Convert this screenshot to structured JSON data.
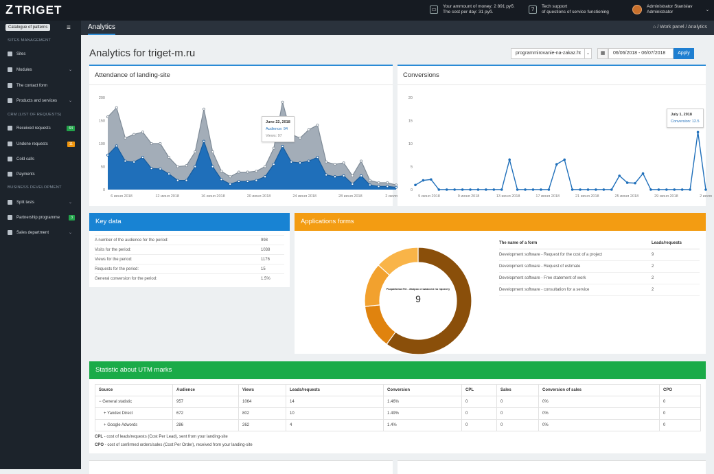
{
  "brand": {
    "name": "TRIGET",
    "mark": "Z"
  },
  "topbar": {
    "money_title": "Your ammount of money: 2 891 руб.",
    "money_sub": "The cost per day: 31 руб.",
    "support_title": "Tech support",
    "support_sub": "of questions of service functioning",
    "user_name": "Administrator Stanislav",
    "user_role": "Administrator"
  },
  "sidebar": {
    "catalogue_button": "Catalogue of patterns",
    "sections": [
      {
        "title": "SITES MANAGEMENT"
      },
      {
        "title": "CRM (LIST OF REQUESTS)"
      },
      {
        "title": "BUSINESS DEVELOPMENT"
      }
    ],
    "items": [
      {
        "label": "Sites"
      },
      {
        "label": "Modules"
      },
      {
        "label": "The contact form"
      },
      {
        "label": "Products and services"
      },
      {
        "label": "Received requests",
        "badge": "64"
      },
      {
        "label": "Undone requests",
        "badge": "11"
      },
      {
        "label": "Cold calls"
      },
      {
        "label": "Payments"
      },
      {
        "label": "Split tests"
      },
      {
        "label": "Partnership programme",
        "badge": "3"
      },
      {
        "label": "Sales department"
      }
    ],
    "badge_colors": {
      "green": "#22a34a",
      "orange": "#f0960e"
    }
  },
  "subbar": {
    "title": "Analytics",
    "crumb1": "Work panel",
    "crumb2": "Analytics"
  },
  "page": {
    "title": "Analytics for triget-m.ru",
    "project_select": "programmirovanie-na-zakaz.ht",
    "date_range": "06/06/2018 - 06/07/2018",
    "apply": "Apply"
  },
  "attendance": {
    "title": "Attendance of landing-site",
    "tooltip_date": "June 22, 2018",
    "tooltip_audience": "Audience: 94",
    "tooltip_views": "Views: 97"
  },
  "conversions": {
    "title": "Conversions",
    "tooltip_date": "July 1, 2018",
    "tooltip_value": "Conversion: 12.5"
  },
  "key_data": {
    "title": "Key data",
    "rows": [
      {
        "label": "A number of the audience for the period:",
        "value": "998"
      },
      {
        "label": "Visits for the period:",
        "value": "1038"
      },
      {
        "label": "Views for the period:",
        "value": "1176"
      },
      {
        "label": "Requests for the period:",
        "value": "15"
      },
      {
        "label": "General conversion for the period:",
        "value": "1.5%"
      }
    ]
  },
  "app_forms": {
    "title": "Applications forms",
    "donut_label": "Разработка ПО - Запрос стоимости по проекту",
    "donut_value": "9",
    "col1": "The name of a form",
    "col2": "Leads/requests",
    "rows": [
      {
        "name": "Development software - Request for the cost of a project",
        "value": "9"
      },
      {
        "name": "Development software - Request of estimate",
        "value": "2"
      },
      {
        "name": "Development software - Free statement of work",
        "value": "2"
      },
      {
        "name": "Development software - consultation for a service",
        "value": "2"
      }
    ]
  },
  "utm": {
    "title": "Statistic about UTM marks",
    "headers": [
      "Source",
      "Audience",
      "Views",
      "Leads/requests",
      "Conversion",
      "CPL",
      "Sales",
      "Conversion of sales",
      "CPO"
    ],
    "rows": [
      [
        "General statistic",
        "957",
        "1064",
        "14",
        "1.46%",
        "0",
        "0",
        "0%",
        "0"
      ],
      [
        "Yandex Direct",
        "672",
        "802",
        "10",
        "1.49%",
        "0",
        "0",
        "0%",
        "0"
      ],
      [
        "Google Adwords",
        "286",
        "262",
        "4",
        "1.4%",
        "0",
        "0",
        "0%",
        "0"
      ]
    ],
    "note_cpl_abbr": "CPL",
    "note_cpl": " - cost of leads/requests (Cost Per Lead), sent from your landing-site",
    "note_cpo_abbr": "CPO",
    "note_cpo": " - cost of confirmed orders/sales (Cost Per Order), received from your landing-site"
  },
  "chart_data": [
    {
      "type": "area",
      "title": "Attendance of landing-site",
      "ylim": [
        0,
        200
      ],
      "yticks": [
        "0",
        "50",
        "100",
        "150",
        "200"
      ],
      "xticks": [
        "6 июня 2018",
        "12 июня 2018",
        "16 июня 2018",
        "20 июня 2018",
        "24 июня 2018",
        "28 июня 2018",
        "2 июля 2018"
      ],
      "series": [
        {
          "name": "Views",
          "color": "#a3adb8",
          "values": [
            158,
            178,
            112,
            120,
            125,
            100,
            100,
            70,
            50,
            52,
            82,
            175,
            82,
            40,
            28,
            38,
            38,
            40,
            50,
            90,
            190,
            120,
            112,
            130,
            140,
            60,
            55,
            58,
            30,
            62,
            20,
            15,
            15,
            10
          ]
        },
        {
          "name": "Audience",
          "color": "#1f6fba",
          "values": [
            75,
            95,
            62,
            60,
            70,
            46,
            45,
            34,
            20,
            20,
            50,
            105,
            50,
            22,
            12,
            18,
            18,
            20,
            28,
            55,
            94,
            60,
            58,
            62,
            70,
            32,
            28,
            30,
            12,
            30,
            10,
            7,
            7,
            5
          ]
        }
      ]
    },
    {
      "type": "line",
      "title": "Conversions",
      "ylim": [
        0,
        20
      ],
      "yticks": [
        "0",
        "5",
        "10",
        "15",
        "20"
      ],
      "xticks": [
        "5 июня 2018",
        "9 июня 2018",
        "13 июня 2018",
        "17 июня 2018",
        "21 июня 2018",
        "25 июня 2018",
        "29 июня 2018",
        "2 июля"
      ],
      "series": [
        {
          "name": "Conversion",
          "color": "#1f6fba",
          "values": [
            1,
            2,
            2.2,
            0,
            0,
            0,
            0,
            0,
            0,
            0,
            0,
            0,
            6.5,
            0,
            0,
            0,
            0,
            0,
            5.5,
            6.5,
            0,
            0,
            0,
            0,
            0,
            0,
            3,
            1.5,
            1.4,
            3.5,
            0,
            0,
            0,
            0,
            0,
            0,
            12.5,
            0
          ]
        }
      ]
    },
    {
      "type": "pie",
      "title": "Applications forms",
      "categories": [
        "Request for the cost of a project",
        "Request of estimate",
        "Free statement of work",
        "consultation for a service"
      ],
      "values": [
        9,
        2,
        2,
        2
      ],
      "colors": [
        "#8a4f0a",
        "#e0830e",
        "#f2a12e",
        "#f9b448"
      ]
    }
  ]
}
